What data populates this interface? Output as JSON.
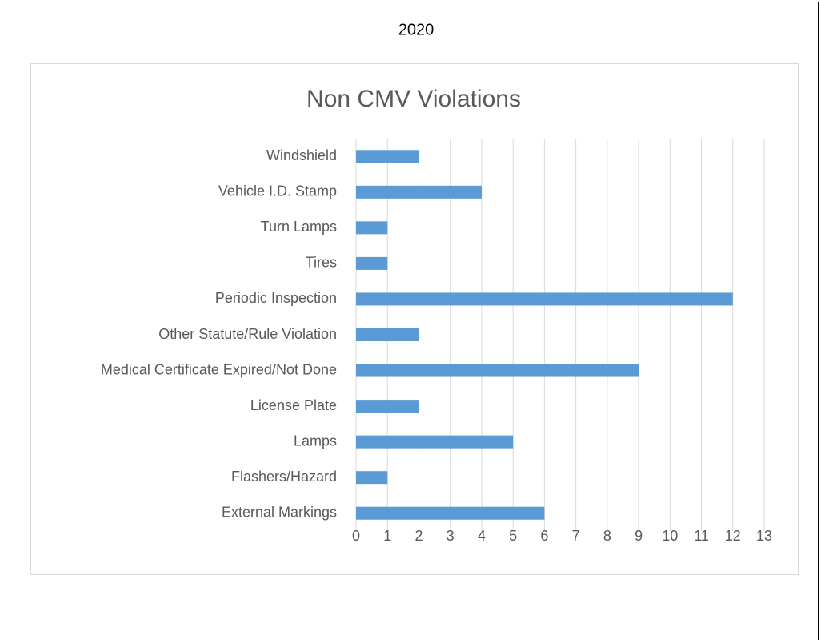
{
  "header": "2020",
  "chart_data": {
    "type": "bar",
    "orientation": "horizontal",
    "title": "Non CMV Violations",
    "categories": [
      "Windshield",
      "Vehicle I.D. Stamp",
      "Turn Lamps",
      "Tires",
      "Periodic Inspection",
      "Other Statute/Rule Violation",
      "Medical Certificate Expired/Not Done",
      "License Plate",
      "Lamps",
      "Flashers/Hazard",
      "External Markings"
    ],
    "values": [
      2,
      4,
      1,
      1,
      12,
      2,
      9,
      2,
      5,
      1,
      6
    ],
    "color": "#5b9bd5",
    "xlim": [
      0,
      13
    ],
    "xticks": [
      0,
      1,
      2,
      3,
      4,
      5,
      6,
      7,
      8,
      9,
      10,
      11,
      12,
      13
    ],
    "grid": true
  }
}
